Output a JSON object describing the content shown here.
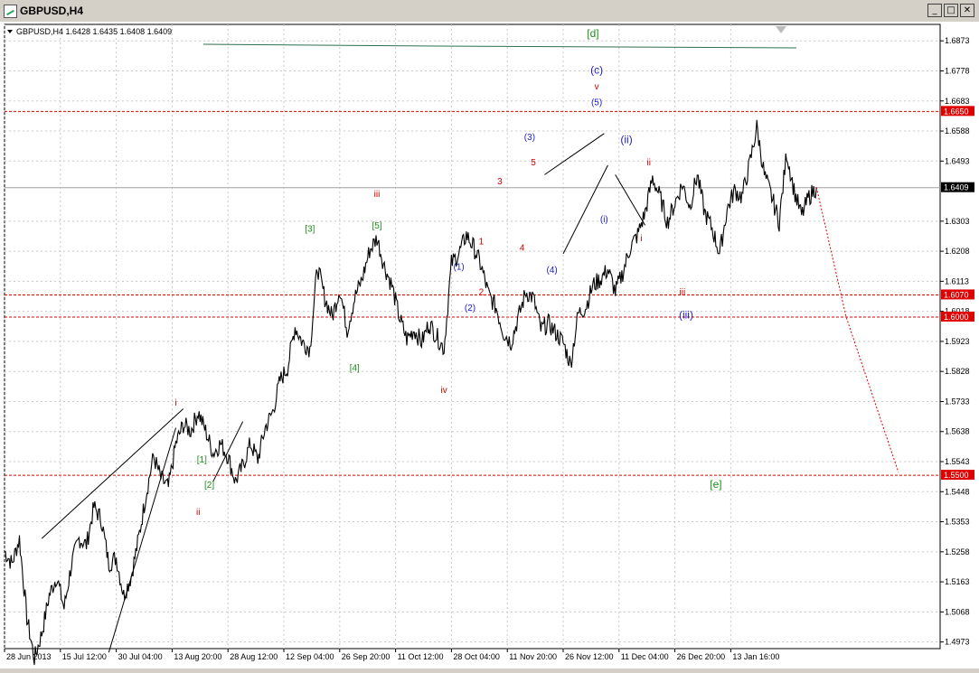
{
  "window": {
    "title": "GBPUSD,H4"
  },
  "window_controls": {
    "minimize": "_",
    "maximize": "□",
    "close": "✕"
  },
  "colors": {
    "background": "#ffffff",
    "grid": "#c8c8c8",
    "price": "#000000",
    "level_line": "#e00000",
    "current_price_tag": "#000000",
    "wave_red": "#d00000",
    "wave_blue": "#1c1ccc",
    "wave_green": "#1e8c1e",
    "forecast": "#e00000",
    "top_line": "#2f6f4f"
  },
  "icons": {
    "chart_menu": "triangle-down-icon",
    "scroll_marker": "triangle-down-icon"
  },
  "chart_data": {
    "type": "line",
    "symbol_info": {
      "symbol": "GBPUSD,H4",
      "open": "1.6428",
      "high": "1.6435",
      "low": "1.6408",
      "close": "1.6409"
    },
    "current_price": {
      "value": 1.6409,
      "label": "1.6409"
    },
    "ylim": [
      1.4952,
      1.6925
    ],
    "xlim": [
      0,
      215
    ],
    "x_ticks": [
      {
        "x": 0,
        "label": "28 Jun 2013"
      },
      {
        "x": 15,
        "label": "15 Jul 12:00"
      },
      {
        "x": 30,
        "label": "30 Jul 04:00"
      },
      {
        "x": 45,
        "label": "13 Aug 20:00"
      },
      {
        "x": 60,
        "label": "28 Aug 12:00"
      },
      {
        "x": 75,
        "label": "12 Sep 04:00"
      },
      {
        "x": 90,
        "label": "26 Sep 20:00"
      },
      {
        "x": 105,
        "label": "11 Oct 12:00"
      },
      {
        "x": 120,
        "label": "28 Oct 04:00"
      },
      {
        "x": 135,
        "label": "11 Nov 20:00"
      },
      {
        "x": 150,
        "label": "26 Nov 12:00"
      },
      {
        "x": 165,
        "label": "11 Dec 04:00"
      },
      {
        "x": 180,
        "label": "26 Dec 20:00"
      },
      {
        "x": 195,
        "label": "13 Jan 16:00"
      }
    ],
    "y_ticks": [
      {
        "v": 1.6873,
        "label": "1.6873"
      },
      {
        "v": 1.6778,
        "label": "1.6778"
      },
      {
        "v": 1.6683,
        "label": "1.6683"
      },
      {
        "v": 1.6588,
        "label": "1.6588"
      },
      {
        "v": 1.6493,
        "label": "1.6493"
      },
      {
        "v": 1.6303,
        "label": "1.6303"
      },
      {
        "v": 1.6208,
        "label": "1.6208"
      },
      {
        "v": 1.6113,
        "label": "1.6113"
      },
      {
        "v": 1.6018,
        "label": "1.6018"
      },
      {
        "v": 1.5923,
        "label": "1.5923"
      },
      {
        "v": 1.5828,
        "label": "1.5828"
      },
      {
        "v": 1.5733,
        "label": "1.5733"
      },
      {
        "v": 1.5638,
        "label": "1.5638"
      },
      {
        "v": 1.5543,
        "label": "1.5543"
      },
      {
        "v": 1.5448,
        "label": "1.5448"
      },
      {
        "v": 1.5353,
        "label": "1.5353"
      },
      {
        "v": 1.5258,
        "label": "1.5258"
      },
      {
        "v": 1.5163,
        "label": "1.5163"
      },
      {
        "v": 1.5068,
        "label": "1.5068"
      },
      {
        "v": 1.4973,
        "label": "1.4973"
      }
    ],
    "levels": [
      {
        "v": 1.665,
        "label": "1.6650"
      },
      {
        "v": 1.607,
        "label": "1.6070"
      },
      {
        "v": 1.6,
        "label": "1.6000"
      },
      {
        "v": 1.55,
        "label": "1.5500"
      }
    ],
    "price_path": [
      [
        0,
        1.526
      ],
      [
        2,
        1.522
      ],
      [
        4,
        1.53
      ],
      [
        6,
        1.505
      ],
      [
        8,
        1.492
      ],
      [
        10,
        1.5
      ],
      [
        12,
        1.512
      ],
      [
        14,
        1.518
      ],
      [
        16,
        1.508
      ],
      [
        18,
        1.522
      ],
      [
        20,
        1.53
      ],
      [
        22,
        1.528
      ],
      [
        24,
        1.54
      ],
      [
        26,
        1.536
      ],
      [
        28,
        1.522
      ],
      [
        30,
        1.524
      ],
      [
        32,
        1.512
      ],
      [
        34,
        1.518
      ],
      [
        36,
        1.53
      ],
      [
        38,
        1.544
      ],
      [
        40,
        1.556
      ],
      [
        42,
        1.549
      ],
      [
        44,
        1.546
      ],
      [
        46,
        1.56
      ],
      [
        48,
        1.566
      ],
      [
        50,
        1.564
      ],
      [
        52,
        1.57
      ],
      [
        54,
        1.564
      ],
      [
        56,
        1.557
      ],
      [
        58,
        1.56
      ],
      [
        60,
        1.556
      ],
      [
        62,
        1.548
      ],
      [
        64,
        1.553
      ],
      [
        66,
        1.56
      ],
      [
        68,
        1.555
      ],
      [
        70,
        1.565
      ],
      [
        72,
        1.57
      ],
      [
        74,
        1.58
      ],
      [
        76,
        1.584
      ],
      [
        78,
        1.597
      ],
      [
        80,
        1.592
      ],
      [
        82,
        1.59
      ],
      [
        84,
        1.616
      ],
      [
        86,
        1.606
      ],
      [
        88,
        1.6
      ],
      [
        90,
        1.609
      ],
      [
        92,
        1.596
      ],
      [
        94,
        1.606
      ],
      [
        96,
        1.612
      ],
      [
        98,
        1.621
      ],
      [
        100,
        1.625
      ],
      [
        102,
        1.616
      ],
      [
        104,
        1.61
      ],
      [
        106,
        1.6
      ],
      [
        108,
        1.593
      ],
      [
        110,
        1.596
      ],
      [
        112,
        1.592
      ],
      [
        114,
        1.598
      ],
      [
        116,
        1.594
      ],
      [
        118,
        1.59
      ],
      [
        120,
        1.617
      ],
      [
        122,
        1.62
      ],
      [
        124,
        1.626
      ],
      [
        126,
        1.622
      ],
      [
        128,
        1.616
      ],
      [
        130,
        1.607
      ],
      [
        132,
        1.603
      ],
      [
        134,
        1.595
      ],
      [
        136,
        1.592
      ],
      [
        138,
        1.6
      ],
      [
        140,
        1.608
      ],
      [
        142,
        1.606
      ],
      [
        144,
        1.596
      ],
      [
        146,
        1.598
      ],
      [
        148,
        1.595
      ],
      [
        150,
        1.592
      ],
      [
        152,
        1.585
      ],
      [
        154,
        1.601
      ],
      [
        156,
        1.603
      ],
      [
        158,
        1.61
      ],
      [
        160,
        1.612
      ],
      [
        162,
        1.615
      ],
      [
        164,
        1.608
      ],
      [
        166,
        1.614
      ],
      [
        168,
        1.622
      ],
      [
        170,
        1.626
      ],
      [
        172,
        1.633
      ],
      [
        174,
        1.644
      ],
      [
        176,
        1.638
      ],
      [
        178,
        1.63
      ],
      [
        180,
        1.636
      ],
      [
        182,
        1.642
      ],
      [
        184,
        1.635
      ],
      [
        186,
        1.645
      ],
      [
        188,
        1.633
      ],
      [
        190,
        1.628
      ],
      [
        192,
        1.62
      ],
      [
        194,
        1.634
      ],
      [
        196,
        1.64
      ],
      [
        198,
        1.638
      ],
      [
        200,
        1.648
      ],
      [
        202,
        1.66
      ],
      [
        204,
        1.645
      ],
      [
        206,
        1.638
      ],
      [
        208,
        1.63
      ],
      [
        210,
        1.652
      ],
      [
        212,
        1.64
      ],
      [
        214,
        1.632
      ],
      [
        216,
        1.638
      ],
      [
        218,
        1.641
      ]
    ],
    "forecast_path": [
      [
        218,
        1.641
      ],
      [
        226,
        1.6
      ],
      [
        240,
        1.551
      ]
    ],
    "wave_labels": [
      {
        "x": 46,
        "y": 1.572,
        "text": "i",
        "color": "red"
      },
      {
        "x": 52,
        "y": 1.5375,
        "text": "ii",
        "color": "red"
      },
      {
        "x": 53,
        "y": 1.554,
        "text": "[1]",
        "color": "green"
      },
      {
        "x": 55,
        "y": 1.546,
        "text": "[2]",
        "color": "green"
      },
      {
        "x": 82,
        "y": 1.627,
        "text": "[3]",
        "color": "green"
      },
      {
        "x": 94,
        "y": 1.583,
        "text": "[4]",
        "color": "green"
      },
      {
        "x": 100,
        "y": 1.638,
        "text": "iii",
        "color": "red"
      },
      {
        "x": 100,
        "y": 1.628,
        "text": "[5]",
        "color": "green"
      },
      {
        "x": 118,
        "y": 1.576,
        "text": "iv",
        "color": "red"
      },
      {
        "x": 122,
        "y": 1.615,
        "text": "(1)",
        "color": "blue"
      },
      {
        "x": 125,
        "y": 1.602,
        "text": "(2)",
        "color": "blue"
      },
      {
        "x": 128,
        "y": 1.607,
        "text": "2",
        "color": "red"
      },
      {
        "x": 128,
        "y": 1.623,
        "text": "1",
        "color": "red"
      },
      {
        "x": 133,
        "y": 1.642,
        "text": "3",
        "color": "red"
      },
      {
        "x": 139,
        "y": 1.621,
        "text": "4",
        "color": "red"
      },
      {
        "x": 141,
        "y": 1.656,
        "text": "(3)",
        "color": "blue"
      },
      {
        "x": 142,
        "y": 1.648,
        "text": "5",
        "color": "red"
      },
      {
        "x": 147,
        "y": 1.614,
        "text": "(4)",
        "color": "blue"
      },
      {
        "x": 158,
        "y": 1.6885,
        "text": "[d]",
        "color": "green"
      },
      {
        "x": 159,
        "y": 1.677,
        "text": "(c)",
        "color": "blue"
      },
      {
        "x": 159,
        "y": 1.672,
        "text": "v",
        "color": "red"
      },
      {
        "x": 159,
        "y": 1.667,
        "text": "(5)",
        "color": "blue"
      },
      {
        "x": 161,
        "y": 1.63,
        "text": "(i)",
        "color": "blue"
      },
      {
        "x": 167,
        "y": 1.655,
        "text": "(ii)",
        "color": "blue"
      },
      {
        "x": 171,
        "y": 1.624,
        "text": "i",
        "color": "red"
      },
      {
        "x": 173,
        "y": 1.648,
        "text": "ii",
        "color": "red"
      },
      {
        "x": 182,
        "y": 1.607,
        "text": "iii",
        "color": "red"
      },
      {
        "x": 183,
        "y": 1.5995,
        "text": "(iii)",
        "color": "blue"
      },
      {
        "x": 191,
        "y": 1.546,
        "text": "[e]",
        "color": "green"
      }
    ]
  }
}
